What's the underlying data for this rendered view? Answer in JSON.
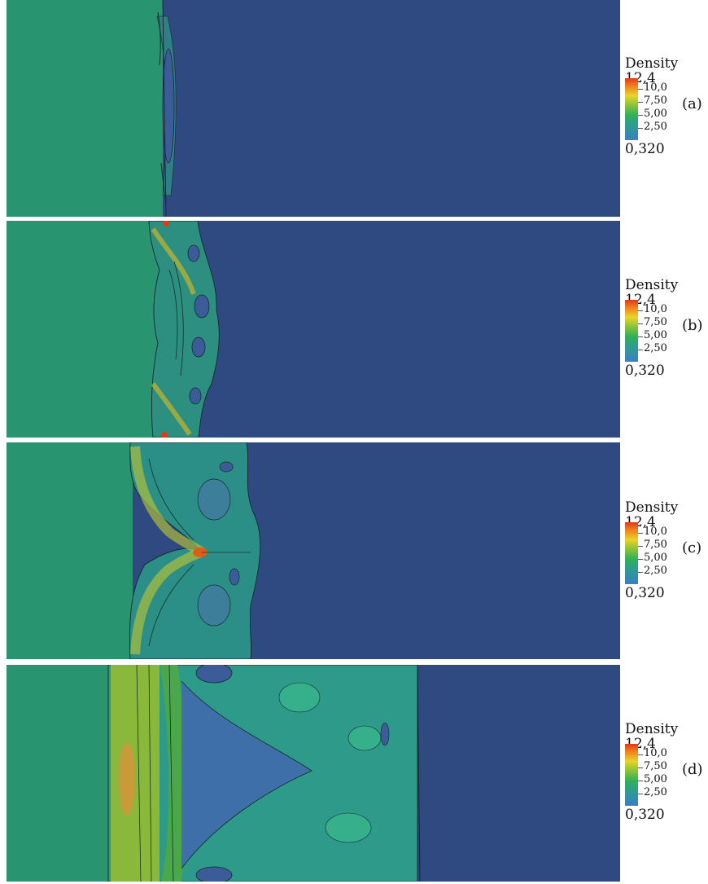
{
  "colormap": {
    "low": "#3a5aa8",
    "mid": "#2d9a6e",
    "high": "#e03a1a",
    "background_light": "#289470",
    "background_dark": "#2e4a80"
  },
  "legend": {
    "title": "Density",
    "max_label": "12,4",
    "min_label": "0,320",
    "ticks": [
      "10,0",
      "7,50",
      "5,00",
      "2,50"
    ]
  },
  "panels": [
    {
      "label": "(a)"
    },
    {
      "label": "(b)"
    },
    {
      "label": "(c)"
    },
    {
      "label": "(d)"
    }
  ]
}
